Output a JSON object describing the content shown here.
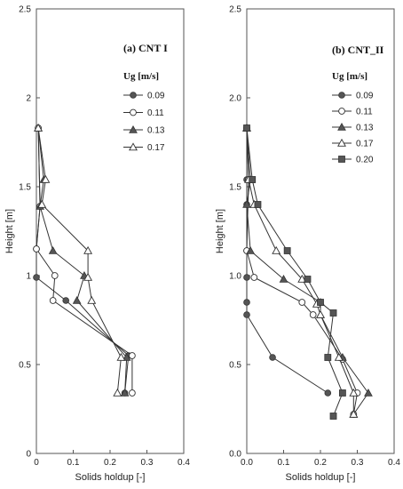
{
  "chart_data": [
    {
      "type": "line",
      "title": "(a) CNT I",
      "xlabel": "Solids holdup  [-]",
      "ylabel": "Height [m]",
      "xlim": [
        0,
        0.4
      ],
      "ylim": [
        0,
        2.5
      ],
      "xticks": [
        "0",
        "0.1",
        "0.2",
        "0.3",
        "0.4"
      ],
      "yticks": [
        "0",
        "0.5",
        "1",
        "1.5",
        "2",
        "2.5"
      ],
      "legend_title": "Ug [m/s]",
      "legend_placement": "top-right",
      "series": [
        {
          "name": "0.09",
          "marker": "circle-filled",
          "points": [
            [
              0.005,
              1.83
            ],
            [
              0.01,
              1.39
            ],
            [
              0.0,
              1.15
            ],
            [
              0.0,
              0.99
            ],
            [
              0.08,
              0.86
            ],
            [
              0.25,
              0.55
            ],
            [
              0.24,
              0.34
            ]
          ]
        },
        {
          "name": "0.11",
          "marker": "circle-open",
          "points": [
            [
              0.005,
              1.83
            ],
            [
              0.01,
              1.39
            ],
            [
              0.0,
              1.15
            ],
            [
              0.05,
              1.0
            ],
            [
              0.045,
              0.86
            ],
            [
              0.26,
              0.55
            ],
            [
              0.26,
              0.34
            ]
          ]
        },
        {
          "name": "0.13",
          "marker": "triangle-filled",
          "points": [
            [
              0.005,
              1.83
            ],
            [
              0.02,
              1.54
            ],
            [
              0.01,
              1.39
            ],
            [
              0.045,
              1.14
            ],
            [
              0.13,
              1.0
            ],
            [
              0.11,
              0.86
            ],
            [
              0.245,
              0.54
            ],
            [
              0.24,
              0.34
            ]
          ]
        },
        {
          "name": "0.17",
          "marker": "triangle-open",
          "points": [
            [
              0.005,
              1.83
            ],
            [
              0.025,
              1.54
            ],
            [
              0.015,
              1.4
            ],
            [
              0.14,
              1.14
            ],
            [
              0.14,
              0.99
            ],
            [
              0.15,
              0.86
            ],
            [
              0.23,
              0.54
            ],
            [
              0.22,
              0.34
            ]
          ]
        }
      ]
    },
    {
      "type": "line",
      "title": "(b) CNT_II",
      "xlabel": "Solids holdup  [-]",
      "ylabel": "Height [m]",
      "xlim": [
        0,
        0.4
      ],
      "ylim": [
        0,
        2.5
      ],
      "xticks": [
        "0.0",
        "0.1",
        "0.2",
        "0.3",
        "0.4"
      ],
      "yticks": [
        "0.0",
        "0.5",
        "1.0",
        "1.5",
        "2.0",
        "2.5"
      ],
      "legend_title": "Ug [m/s]",
      "legend_placement": "top-right",
      "series": [
        {
          "name": "0.09",
          "marker": "circle-filled",
          "points": [
            [
              0.0,
              1.83
            ],
            [
              0.0,
              1.54
            ],
            [
              0.0,
              1.4
            ],
            [
              0.0,
              1.14
            ],
            [
              0.0,
              0.99
            ],
            [
              0.0,
              0.85
            ],
            [
              0.0,
              0.78
            ],
            [
              0.07,
              0.54
            ],
            [
              0.22,
              0.34
            ]
          ]
        },
        {
          "name": "0.11",
          "marker": "circle-open",
          "points": [
            [
              0.0,
              1.83
            ],
            [
              0.005,
              1.54
            ],
            [
              0.0,
              1.14
            ],
            [
              0.02,
              0.99
            ],
            [
              0.15,
              0.85
            ],
            [
              0.18,
              0.78
            ],
            [
              0.26,
              0.53
            ],
            [
              0.3,
              0.34
            ],
            [
              0.29,
              0.22
            ]
          ]
        },
        {
          "name": "0.13",
          "marker": "triangle-filled",
          "points": [
            [
              0.0,
              1.83
            ],
            [
              0.01,
              1.54
            ],
            [
              0.0,
              1.4
            ],
            [
              0.01,
              1.14
            ],
            [
              0.1,
              0.98
            ],
            [
              0.2,
              0.85
            ],
            [
              0.2,
              0.78
            ],
            [
              0.26,
              0.54
            ],
            [
              0.33,
              0.34
            ],
            [
              0.29,
              0.22
            ]
          ]
        },
        {
          "name": "0.17",
          "marker": "triangle-open",
          "points": [
            [
              0.0,
              1.83
            ],
            [
              0.005,
              1.54
            ],
            [
              0.02,
              1.4
            ],
            [
              0.08,
              1.14
            ],
            [
              0.15,
              0.98
            ],
            [
              0.19,
              0.84
            ],
            [
              0.2,
              0.78
            ],
            [
              0.25,
              0.54
            ],
            [
              0.29,
              0.34
            ],
            [
              0.29,
              0.22
            ]
          ]
        },
        {
          "name": "0.20",
          "marker": "square-filled",
          "points": [
            [
              0.0,
              1.83
            ],
            [
              0.015,
              1.54
            ],
            [
              0.03,
              1.4
            ],
            [
              0.11,
              1.14
            ],
            [
              0.165,
              0.98
            ],
            [
              0.2,
              0.85
            ],
            [
              0.235,
              0.79
            ],
            [
              0.22,
              0.54
            ],
            [
              0.26,
              0.34
            ],
            [
              0.235,
              0.21
            ]
          ]
        }
      ]
    }
  ]
}
